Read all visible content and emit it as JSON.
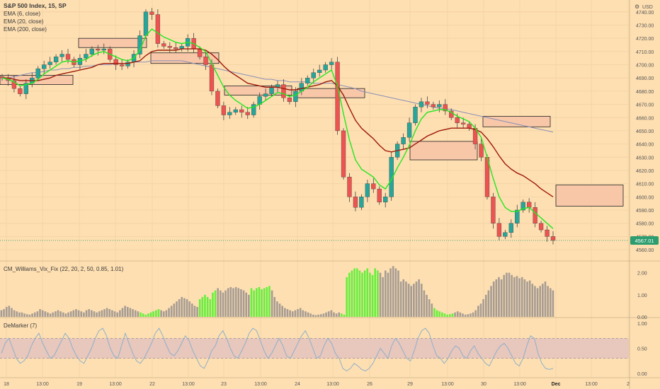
{
  "colors": {
    "background": "#fedfb1",
    "grid": "#f3d4a6",
    "candle_up": "#26a69a",
    "candle_down": "#ef5350",
    "wick": "#444444",
    "ema6": "#22e622",
    "ema20": "#9c1a0a",
    "ema200": "#8a8fb8",
    "zone_fill": "#f7c7a8",
    "zone_border": "#222222",
    "vix_green": "#66ef3c",
    "vix_gray": "#a69c94",
    "demarker_line": "#8fb0c8",
    "demarker_band": "#e8c7bd",
    "price_tag": "#2c9d6e",
    "axis_text": "#555555"
  },
  "main_legend": {
    "symbol": "S&P 500 Index, 15, SP",
    "ema6": "EMA (6, close)",
    "ema20": "EMA (20, close)",
    "ema200": "EMA (200, close)"
  },
  "vix_legend": "CM_Williams_Vix_Fix (22, 20, 2, 50, 0.85, 1.01)",
  "dm_legend": "DeMarker (7)",
  "currency": "USD",
  "last_price": "4567.01",
  "x_axis_labels": [
    "18",
    "13:00",
    "19",
    "13:00",
    "22",
    "13:00",
    "23",
    "13:00",
    "24",
    "13:00",
    "26",
    "29",
    "13:00",
    "30",
    "13:00",
    "Dec",
    "13:00",
    "2"
  ],
  "chart_data": [
    {
      "type": "candlestick",
      "title": "S&P 500 Index, 15, SP",
      "ylabel": "USD",
      "ylim": [
        4552,
        4749
      ],
      "y_ticks": [
        4560,
        4570,
        4580,
        4590,
        4600,
        4610,
        4620,
        4630,
        4640,
        4650,
        4660,
        4670,
        4680,
        4690,
        4700,
        4710,
        4720,
        4730,
        4740
      ],
      "x_ticks": [
        "18",
        "13:00",
        "19",
        "13:00",
        "22",
        "13:00",
        "23",
        "13:00",
        "24",
        "13:00",
        "26",
        "29",
        "13:00",
        "30",
        "13:00",
        "Dec",
        "13:00",
        "2"
      ],
      "close_path": [
        4690,
        4688,
        4682,
        4678,
        4686,
        4690,
        4697,
        4700,
        4702,
        4706,
        4708,
        4704,
        4700,
        4705,
        4708,
        4712,
        4711,
        4712,
        4704,
        4700,
        4699,
        4702,
        4708,
        4722,
        4740,
        4738,
        4716,
        4714,
        4713,
        4712,
        4714,
        4720,
        4712,
        4706,
        4700,
        4680,
        4669,
        4662,
        4664,
        4666,
        4664,
        4662,
        4670,
        4676,
        4678,
        4683,
        4685,
        4675,
        4672,
        4680,
        4686,
        4690,
        4694,
        4696,
        4700,
        4702,
        4650,
        4615,
        4600,
        4592,
        4600,
        4610,
        4606,
        4596,
        4600,
        4630,
        4640,
        4645,
        4656,
        4668,
        4672,
        4670,
        4668,
        4670,
        4665,
        4660,
        4656,
        4655,
        4652,
        4640,
        4630,
        4600,
        4580,
        4570,
        4573,
        4580,
        4590,
        4596,
        4592,
        4580,
        4575,
        4570,
        4567
      ],
      "series": [
        {
          "name": "EMA (6, close)",
          "values": [
            4690,
            4689,
            4687,
            4684,
            4685,
            4686,
            4689,
            4693,
            4696,
            4699,
            4702,
            4703,
            4702,
            4703,
            4704,
            4707,
            4709,
            4710,
            4708,
            4706,
            4704,
            4703,
            4705,
            4711,
            4722,
            4727,
            4724,
            4721,
            4719,
            4717,
            4716,
            4717,
            4716,
            4713,
            4710,
            4701,
            4692,
            4683,
            4677,
            4673,
            4670,
            4667,
            4668,
            4670,
            4673,
            4676,
            4679,
            4678,
            4676,
            4677,
            4680,
            4683,
            4687,
            4690,
            4693,
            4696,
            4684,
            4663,
            4643,
            4628,
            4621,
            4618,
            4615,
            4609,
            4606,
            4613,
            4622,
            4630,
            4639,
            4650,
            4659,
            4664,
            4665,
            4666,
            4666,
            4664,
            4661,
            4659,
            4657,
            4652,
            4645,
            4630,
            4614,
            4600,
            4592,
            4589,
            4589,
            4591,
            4592,
            4588,
            4584,
            4580,
            4576
          ]
        },
        {
          "name": "EMA (20, close)",
          "values": [
            4690,
            4690,
            4689,
            4688,
            4688,
            4688,
            4688,
            4689,
            4690,
            4692,
            4693,
            4694,
            4695,
            4696,
            4697,
            4698,
            4700,
            4701,
            4701,
            4701,
            4701,
            4701,
            4702,
            4703,
            4707,
            4710,
            4711,
            4711,
            4711,
            4711,
            4712,
            4712,
            4712,
            4712,
            4711,
            4708,
            4704,
            4699,
            4695,
            4692,
            4689,
            4686,
            4685,
            4684,
            4683,
            4683,
            4683,
            4682,
            4681,
            4681,
            4682,
            4683,
            4684,
            4685,
            4687,
            4688,
            4684,
            4677,
            4667,
            4658,
            4652,
            4648,
            4644,
            4639,
            4635,
            4634,
            4635,
            4636,
            4637,
            4640,
            4643,
            4646,
            4648,
            4650,
            4651,
            4652,
            4652,
            4652,
            4652,
            4651,
            4649,
            4644,
            4638,
            4631,
            4625,
            4621,
            4618,
            4616,
            4613,
            4610,
            4606,
            4603,
            4600
          ]
        },
        {
          "name": "EMA (200, close)",
          "values": [
            4690,
            4690,
            4691,
            4692,
            4693,
            4694,
            4694,
            4695,
            4696,
            4696,
            4697,
            4697,
            4698,
            4698,
            4699,
            4699,
            4700,
            4700,
            4700,
            4701,
            4701,
            4701,
            4702,
            4702,
            4702,
            4703,
            4703,
            4703,
            4703,
            4703,
            4703,
            4702,
            4701,
            4700,
            4699,
            4698,
            4697,
            4696,
            4695,
            4694,
            4693,
            4692,
            4691,
            4690,
            4689,
            4689,
            4688,
            4688,
            4687,
            4687,
            4687,
            4687,
            4686,
            4686,
            4686,
            4686,
            4685,
            4684,
            4683,
            4682,
            4680,
            4679,
            4678,
            4677,
            4676,
            4675,
            4674,
            4673,
            4672,
            4671,
            4670,
            4669,
            4668,
            4667,
            4667,
            4666,
            4665,
            4664,
            4663,
            4662,
            4661,
            4660,
            4659,
            4658,
            4657,
            4656,
            4655,
            4654,
            4653,
            4652,
            4651,
            4650,
            4649
          ]
        }
      ],
      "zones": [
        {
          "low": 4685,
          "high": 4692
        },
        {
          "low": 4713,
          "high": 4720
        },
        {
          "low": 4701,
          "high": 4709
        },
        {
          "low": 4677,
          "high": 4684
        },
        {
          "low": 4675,
          "high": 4682
        },
        {
          "low": 4628,
          "high": 4642
        },
        {
          "low": 4653,
          "high": 4661
        },
        {
          "low": 4593,
          "high": 4609
        }
      ]
    },
    {
      "type": "bar",
      "title": "CM_Williams_Vix_Fix (22, 20, 2, 50, 0.85, 1.01)",
      "ylim": [
        0,
        2.5
      ],
      "y_ticks": [
        0.0,
        1.0,
        2.0
      ],
      "values": [
        0.3,
        0.35,
        0.45,
        0.5,
        0.4,
        0.3,
        0.25,
        0.2,
        0.2,
        0.15,
        0.12,
        0.1,
        0.15,
        0.2,
        0.25,
        0.35,
        0.3,
        0.25,
        0.2,
        0.15,
        0.2,
        0.25,
        0.3,
        0.25,
        0.2,
        0.15,
        0.2,
        0.25,
        0.3,
        0.35,
        0.3,
        0.25,
        0.2,
        0.3,
        0.35,
        0.3,
        0.25,
        0.2,
        0.25,
        0.3,
        0.35,
        0.4,
        0.35,
        0.3,
        0.25,
        0.2,
        0.3,
        0.4,
        0.5,
        0.45,
        0.4,
        0.35,
        0.3,
        0.25,
        0.2,
        0.15,
        0.1,
        0.15,
        0.2,
        0.25,
        0.3,
        0.35,
        0.3,
        0.25,
        0.3,
        0.4,
        0.5,
        0.6,
        0.7,
        0.8,
        0.9,
        0.85,
        0.8,
        0.7,
        0.6,
        0.5,
        0.45,
        0.8,
        0.9,
        1.0,
        0.9,
        0.8,
        1.1,
        1.2,
        1.3,
        1.2,
        1.1,
        1.2,
        1.3,
        1.35,
        1.3,
        1.35,
        1.3,
        1.25,
        1.2,
        1.1,
        1.0,
        1.3,
        1.2,
        1.3,
        1.35,
        1.25,
        1.3,
        1.35,
        1.4,
        1.2,
        0.9,
        0.7,
        0.6,
        0.5,
        0.4,
        0.35,
        0.3,
        0.25,
        0.3,
        0.35,
        0.4,
        0.3,
        0.25,
        0.2,
        0.15,
        0.1,
        0.08,
        0.1,
        0.12,
        0.15,
        0.2,
        0.25,
        0.3,
        0.2,
        0.15,
        0.2,
        0.15,
        0.1,
        1.8,
        2.0,
        2.1,
        2.2,
        2.2,
        2.1,
        2.0,
        2.1,
        2.2,
        2.0,
        1.9,
        2.2,
        2.1,
        2.0,
        1.8,
        2.1,
        2.0,
        2.2,
        2.3,
        2.2,
        2.1,
        1.6,
        1.7,
        1.6,
        1.5,
        1.4,
        1.5,
        1.6,
        1.7,
        1.5,
        1.2,
        1.0,
        0.8,
        0.6,
        0.4,
        0.3,
        0.25,
        0.2,
        0.15,
        0.1,
        0.12,
        0.15,
        0.2,
        0.25,
        0.2,
        0.15,
        0.1,
        0.12,
        0.15,
        0.2,
        0.3,
        0.5,
        0.6,
        0.8,
        1.0,
        1.2,
        1.4,
        1.6,
        1.7,
        1.8,
        1.7,
        1.9,
        2.0,
        2.0,
        1.9,
        1.8,
        1.85,
        1.75,
        1.8,
        1.7,
        1.6,
        1.65,
        1.5,
        1.4,
        1.3,
        1.4,
        1.5,
        1.6,
        1.4,
        1.3,
        1.2
      ],
      "highlighted": [
        [
          54,
          61
        ],
        [
          77,
          83
        ],
        [
          97,
          104
        ],
        [
          132,
          146
        ],
        [
          168,
          175
        ]
      ]
    },
    {
      "type": "line",
      "title": "DeMarker (7)",
      "ylim": [
        0,
        1
      ],
      "y_ticks": [
        0.0,
        0.5,
        1.0
      ],
      "bands": [
        0.3,
        0.7
      ],
      "values": [
        0.4,
        0.6,
        0.7,
        0.5,
        0.3,
        0.2,
        0.25,
        0.35,
        0.55,
        0.7,
        0.8,
        0.6,
        0.45,
        0.3,
        0.35,
        0.5,
        0.65,
        0.8,
        0.7,
        0.5,
        0.35,
        0.25,
        0.2,
        0.35,
        0.5,
        0.7,
        0.85,
        0.9,
        0.75,
        0.5,
        0.35,
        0.3,
        0.55,
        0.8,
        0.6,
        0.4,
        0.25,
        0.2,
        0.3,
        0.45,
        0.6,
        0.8,
        0.9,
        0.75,
        0.55,
        0.4,
        0.35,
        0.45,
        0.6,
        0.75,
        0.65,
        0.45,
        0.3,
        0.15,
        0.1,
        0.25,
        0.45,
        0.55,
        0.75,
        0.85,
        0.7,
        0.5,
        0.35,
        0.3,
        0.45,
        0.6,
        0.8,
        0.9,
        0.85,
        0.65,
        0.45,
        0.3,
        0.4,
        0.55,
        0.7,
        0.55,
        0.35,
        0.3,
        0.45,
        0.6,
        0.75,
        0.85,
        0.7,
        0.5,
        0.3,
        0.35,
        0.55,
        0.7,
        0.6,
        0.4,
        0.3,
        0.1,
        0.05,
        0.1,
        0.2,
        0.15,
        0.08,
        0.05,
        0.1,
        0.2,
        0.35,
        0.5,
        0.4,
        0.3,
        0.55,
        0.7,
        0.6,
        0.45,
        0.3,
        0.25,
        0.45,
        0.7,
        0.85,
        0.9,
        0.8,
        0.55,
        0.35,
        0.3,
        0.2,
        0.3,
        0.45,
        0.55,
        0.5,
        0.35,
        0.3,
        0.45,
        0.55,
        0.4,
        0.3,
        0.2,
        0.15,
        0.3,
        0.45,
        0.55,
        0.6,
        0.5,
        0.35,
        0.2,
        0.15,
        0.3,
        0.55,
        0.75,
        0.7,
        0.4,
        0.2,
        0.1,
        0.08,
        0.1
      ]
    }
  ]
}
